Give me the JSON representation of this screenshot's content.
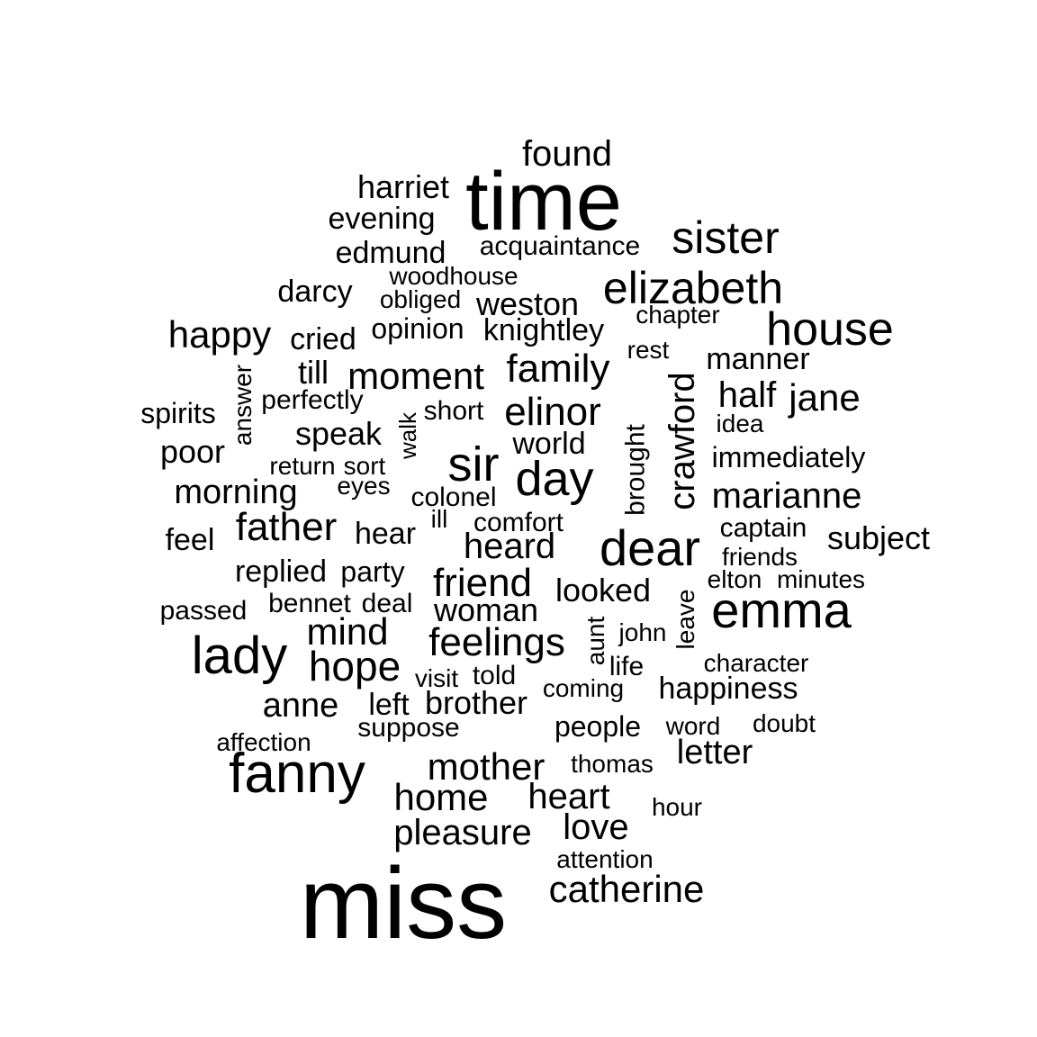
{
  "word_cloud": {
    "words": [
      {
        "id": "miss",
        "text": "miss"
      },
      {
        "id": "time",
        "text": "time"
      },
      {
        "id": "fanny",
        "text": "fanny"
      },
      {
        "id": "lady",
        "text": "lady"
      },
      {
        "id": "dear",
        "text": "dear"
      },
      {
        "id": "emma",
        "text": "emma"
      },
      {
        "id": "house",
        "text": "house"
      },
      {
        "id": "sister",
        "text": "sister"
      },
      {
        "id": "elizabeth",
        "text": "elizabeth"
      },
      {
        "id": "sir",
        "text": "sir"
      },
      {
        "id": "day",
        "text": "day"
      },
      {
        "id": "elinor",
        "text": "elinor"
      },
      {
        "id": "family",
        "text": "family"
      },
      {
        "id": "friend",
        "text": "friend"
      },
      {
        "id": "feelings",
        "text": "feelings"
      },
      {
        "id": "hope",
        "text": "hope"
      },
      {
        "id": "mother",
        "text": "mother"
      },
      {
        "id": "father",
        "text": "father"
      },
      {
        "id": "moment",
        "text": "moment"
      },
      {
        "id": "jane",
        "text": "jane"
      },
      {
        "id": "happy",
        "text": "happy"
      },
      {
        "id": "mind",
        "text": "mind"
      },
      {
        "id": "home",
        "text": "home"
      },
      {
        "id": "heart",
        "text": "heart"
      },
      {
        "id": "catherine",
        "text": "catherine"
      },
      {
        "id": "pleasure",
        "text": "pleasure"
      },
      {
        "id": "love",
        "text": "love"
      },
      {
        "id": "marianne",
        "text": "marianne"
      },
      {
        "id": "crawford",
        "text": "crawford"
      },
      {
        "id": "half",
        "text": "half"
      },
      {
        "id": "heard",
        "text": "heard"
      },
      {
        "id": "found",
        "text": "found"
      },
      {
        "id": "anne",
        "text": "anne"
      },
      {
        "id": "brother",
        "text": "brother"
      },
      {
        "id": "weston",
        "text": "weston"
      },
      {
        "id": "knightley",
        "text": "knightley"
      },
      {
        "id": "woman",
        "text": "woman"
      },
      {
        "id": "looked",
        "text": "looked"
      },
      {
        "id": "letter",
        "text": "letter"
      },
      {
        "id": "morning",
        "text": "morning"
      },
      {
        "id": "speak",
        "text": "speak"
      },
      {
        "id": "world",
        "text": "world"
      },
      {
        "id": "subject",
        "text": "subject"
      },
      {
        "id": "happiness",
        "text": "happiness"
      },
      {
        "id": "harriet",
        "text": "harriet"
      },
      {
        "id": "evening",
        "text": "evening"
      },
      {
        "id": "edmund",
        "text": "edmund"
      },
      {
        "id": "darcy",
        "text": "darcy"
      },
      {
        "id": "cried",
        "text": "cried"
      },
      {
        "id": "till",
        "text": "till"
      },
      {
        "id": "poor",
        "text": "poor"
      },
      {
        "id": "replied",
        "text": "replied"
      },
      {
        "id": "manner",
        "text": "manner"
      },
      {
        "id": "acquaintance",
        "text": "acquaintance"
      },
      {
        "id": "opinion",
        "text": "opinion"
      },
      {
        "id": "immediately",
        "text": "immediately"
      },
      {
        "id": "feel",
        "text": "feel"
      },
      {
        "id": "hear",
        "text": "hear"
      },
      {
        "id": "people",
        "text": "people"
      },
      {
        "id": "suppose",
        "text": "suppose"
      },
      {
        "id": "left",
        "text": "left"
      },
      {
        "id": "told",
        "text": "told"
      },
      {
        "id": "captain",
        "text": "captain"
      },
      {
        "id": "party",
        "text": "party"
      },
      {
        "id": "deal",
        "text": "deal"
      },
      {
        "id": "brought",
        "text": "brought"
      },
      {
        "id": "spirits",
        "text": "spirits"
      },
      {
        "id": "passed",
        "text": "passed"
      },
      {
        "id": "bennet",
        "text": "bennet"
      },
      {
        "id": "comfort",
        "text": "comfort"
      },
      {
        "id": "colonel",
        "text": "colonel"
      },
      {
        "id": "short",
        "text": "short"
      },
      {
        "id": "perfectly",
        "text": "perfectly"
      },
      {
        "id": "woodhouse",
        "text": "woodhouse"
      },
      {
        "id": "obliged",
        "text": "obliged"
      },
      {
        "id": "chapter",
        "text": "chapter"
      },
      {
        "id": "rest",
        "text": "rest"
      },
      {
        "id": "idea",
        "text": "idea"
      },
      {
        "id": "friends",
        "text": "friends"
      },
      {
        "id": "elton",
        "text": "elton"
      },
      {
        "id": "minutes",
        "text": "minutes"
      },
      {
        "id": "john",
        "text": "john"
      },
      {
        "id": "life",
        "text": "life"
      },
      {
        "id": "character",
        "text": "character"
      },
      {
        "id": "coming",
        "text": "coming"
      },
      {
        "id": "word",
        "text": "word"
      },
      {
        "id": "doubt",
        "text": "doubt"
      },
      {
        "id": "thomas",
        "text": "thomas"
      },
      {
        "id": "hour",
        "text": "hour"
      },
      {
        "id": "attention",
        "text": "attention"
      },
      {
        "id": "affection",
        "text": "affection"
      },
      {
        "id": "visit",
        "text": "visit"
      },
      {
        "id": "return",
        "text": "return"
      },
      {
        "id": "sort",
        "text": "sort"
      },
      {
        "id": "eyes",
        "text": "eyes"
      },
      {
        "id": "ill",
        "text": "ill"
      },
      {
        "id": "answer",
        "text": "answer"
      },
      {
        "id": "walk",
        "text": "walk"
      },
      {
        "id": "leave",
        "text": "leave"
      },
      {
        "id": "aunt",
        "text": "aunt"
      }
    ]
  }
}
